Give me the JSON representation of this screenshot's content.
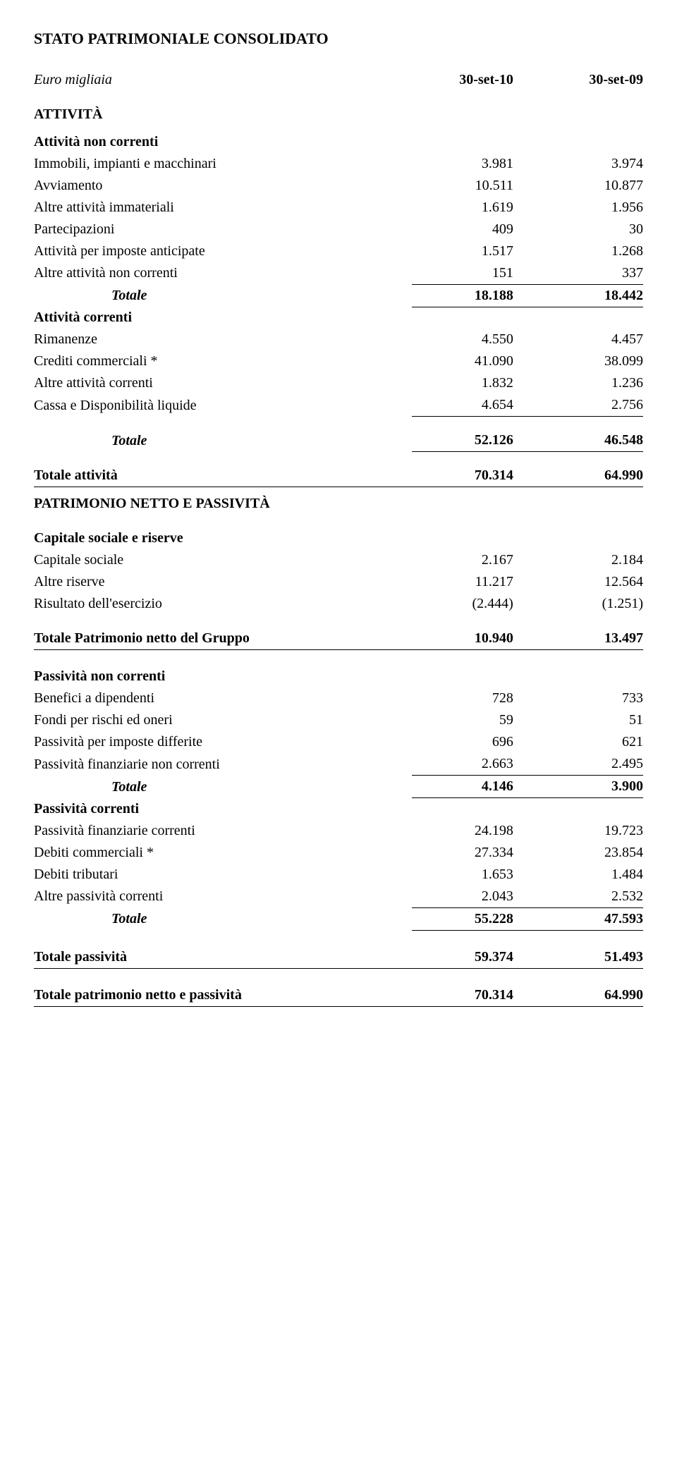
{
  "title": "STATO PATRIMONIALE CONSOLIDATO",
  "header": {
    "unit": "Euro migliaia",
    "c1": "30-set-10",
    "c2": "30-set-09"
  },
  "s_attivita": "ATTIVITÀ",
  "s_nc": "Attività non correnti",
  "r_imm": {
    "l": "Immobili, impianti e macchinari",
    "v1": "3.981",
    "v2": "3.974"
  },
  "r_avv": {
    "l": "Avviamento",
    "v1": "10.511",
    "v2": "10.877"
  },
  "r_aimm": {
    "l": "Altre attività immateriali",
    "v1": "1.619",
    "v2": "1.956"
  },
  "r_part": {
    "l": "Partecipazioni",
    "v1": "409",
    "v2": "30"
  },
  "r_impa": {
    "l": "Attività per imposte anticipate",
    "v1": "1.517",
    "v2": "1.268"
  },
  "r_anc": {
    "l": "Altre attività non correnti",
    "v1": "151",
    "v2": "337"
  },
  "r_tot_nc": {
    "l": "Totale",
    "v1": "18.188",
    "v2": "18.442"
  },
  "s_ac": "Attività correnti",
  "r_rim": {
    "l": "Rimanenze",
    "v1": "4.550",
    "v2": "4.457"
  },
  "r_cred": {
    "l": "Crediti commerciali *",
    "v1": "41.090",
    "v2": "38.099"
  },
  "r_aac": {
    "l": "Altre attività correnti",
    "v1": "1.832",
    "v2": "1.236"
  },
  "r_cassa": {
    "l": "Cassa e Disponibilità liquide",
    "v1": "4.654",
    "v2": "2.756"
  },
  "r_tot_ac": {
    "l": "Totale",
    "v1": "52.126",
    "v2": "46.548"
  },
  "r_tot_a": {
    "l": "Totale attività",
    "v1": "70.314",
    "v2": "64.990"
  },
  "s_pnp": "PATRIMONIO NETTO E PASSIVITÀ",
  "s_csr": "Capitale sociale e riserve",
  "r_cap": {
    "l": "Capitale sociale",
    "v1": "2.167",
    "v2": "2.184"
  },
  "r_ris": {
    "l": "Altre riserve",
    "v1": "11.217",
    "v2": "12.564"
  },
  "r_res": {
    "l": "Risultato dell'esercizio",
    "v1": "(2.444)",
    "v2": "(1.251)"
  },
  "r_tpn": {
    "l": "Totale Patrimonio netto del Gruppo",
    "v1": "10.940",
    "v2": "13.497"
  },
  "s_pnc": "Passività non correnti",
  "r_ben": {
    "l": "Benefici a dipendenti",
    "v1": "728",
    "v2": "733"
  },
  "r_fon": {
    "l": "Fondi per rischi ed oneri",
    "v1": "59",
    "v2": "51"
  },
  "r_pid": {
    "l": "Passività per imposte differite",
    "v1": "696",
    "v2": "621"
  },
  "r_pfnc": {
    "l": "Passività finanziarie non correnti",
    "v1": "2.663",
    "v2": "2.495"
  },
  "r_tot_pnc": {
    "l": "Totale",
    "v1": "4.146",
    "v2": "3.900"
  },
  "s_pc": "Passività correnti",
  "r_pfc": {
    "l": "Passività finanziarie correnti",
    "v1": "24.198",
    "v2": "19.723"
  },
  "r_deb": {
    "l": "Debiti commerciali *",
    "v1": "27.334",
    "v2": "23.854"
  },
  "r_dt": {
    "l": "Debiti tributari",
    "v1": "1.653",
    "v2": "1.484"
  },
  "r_apc": {
    "l": "Altre passività correnti",
    "v1": "2.043",
    "v2": "2.532"
  },
  "r_tot_pc": {
    "l": "Totale",
    "v1": "55.228",
    "v2": "47.593"
  },
  "r_tot_p": {
    "l": "Totale passività",
    "v1": "59.374",
    "v2": "51.493"
  },
  "r_tot_pnpa": {
    "l": "Totale patrimonio netto e passività",
    "v1": "70.314",
    "v2": "64.990"
  }
}
